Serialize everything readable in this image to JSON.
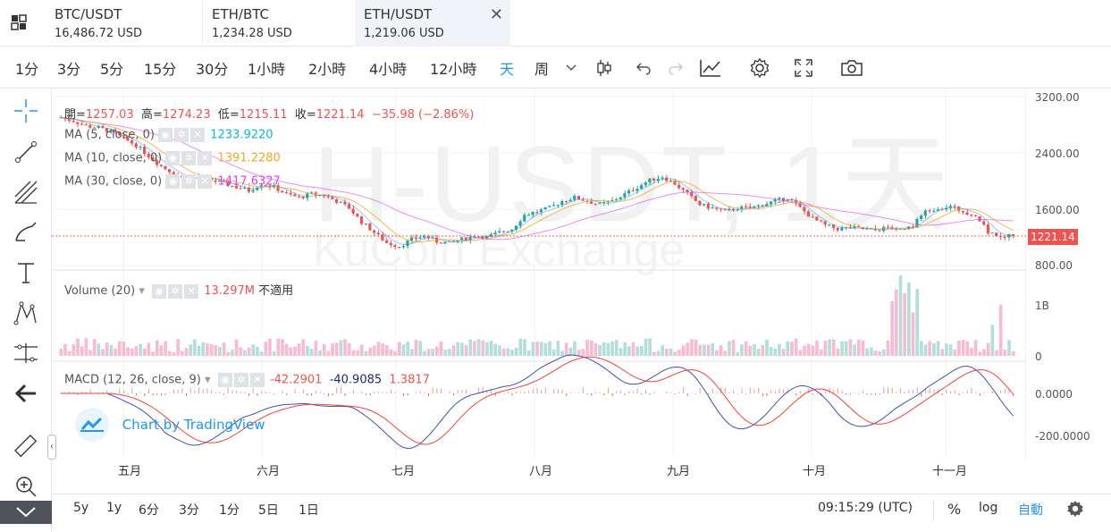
{
  "tabs": [
    {
      "pair": "BTC/USDT",
      "price": "16,486.72 USD"
    },
    {
      "pair": "ETH/BTC",
      "price": "1,234.28 USD"
    },
    {
      "pair": "ETH/USDT",
      "price": "1,219.06 USD"
    }
  ],
  "toolbar": {
    "intervals": [
      "1分",
      "3分",
      "5分",
      "15分",
      "30分",
      "1小時",
      "2小時",
      "4小時",
      "12小時",
      "天",
      "周"
    ],
    "active_interval": "天"
  },
  "watermark": {
    "title": "H-USDT, 1天",
    "exchange": "KuCoin Exchange"
  },
  "legend": {
    "ohlc": {
      "open_label": "開=",
      "open": "1257.03",
      "high_label": "高=",
      "high": "1274.23",
      "low_label": "低=",
      "low": "1215.11",
      "close_label": "收=",
      "close": "1221.14",
      "change": "−35.98 (−2.86%)"
    },
    "ma5": {
      "label": "MA (5, close, 0)",
      "value": "1233.9220"
    },
    "ma10": {
      "label": "MA (10, close, 0)",
      "value": "1391.2280"
    },
    "ma30": {
      "label": "MA (30, close, 0)",
      "value": "1417.6327"
    },
    "volume": {
      "label": "Volume (20)",
      "value": "13.297M",
      "extra": "不適用"
    },
    "macd": {
      "label": "MACD (12, 26, close, 9)",
      "v1": "-42.2901",
      "v2": "-40.9085",
      "v3": "1.3817"
    }
  },
  "price_axis": {
    "ticks": [
      "3200.00",
      "2400.00",
      "1600.00",
      "800.00"
    ],
    "last_price": "1221.14"
  },
  "volume_axis": {
    "ticks": [
      "1B",
      "0"
    ]
  },
  "macd_axis": {
    "ticks": [
      "0.0000",
      "-200.0000"
    ]
  },
  "time_axis": {
    "labels": [
      "五月",
      "六月",
      "七月",
      "八月",
      "九月",
      "十月",
      "十一月"
    ]
  },
  "branding": {
    "text": "Chart by TradingView"
  },
  "bottom": {
    "ranges": [
      "5y",
      "1y",
      "6分",
      "3分",
      "1分",
      "5日",
      "1日"
    ],
    "clock": "09:15:29 (UTC)",
    "percent": "%",
    "log": "log",
    "auto": "自動"
  },
  "colors": {
    "up": "#26a69a",
    "down": "#ef5350",
    "ma5": "#2196f3",
    "ma10": "#f5a623",
    "ma30": "#e040fb",
    "accent": "#2196f3"
  },
  "chart_data": {
    "type": "candlestick",
    "series_close": [
      2900,
      2850,
      2780,
      2750,
      2700,
      2600,
      2500,
      2350,
      2200,
      2100,
      2000,
      2050,
      2000,
      1950,
      1900,
      1850,
      1950,
      1900,
      1800,
      1750,
      1800,
      1780,
      1700,
      1600,
      1400,
      1250,
      1100,
      1050,
      1150,
      1200,
      1120,
      1100,
      1150,
      1200,
      1180,
      1250,
      1300,
      1500,
      1550,
      1600,
      1700,
      1750,
      1700,
      1650,
      1700,
      1800,
      1900,
      2000,
      2050,
      1950,
      1800,
      1650,
      1600,
      1550,
      1600,
      1600,
      1650,
      1700,
      1750,
      1600,
      1450,
      1350,
      1300,
      1320,
      1300,
      1280,
      1320,
      1300,
      1350,
      1550,
      1600,
      1620,
      1550,
      1500,
      1250,
      1200,
      1221
    ],
    "price_range": [
      800,
      3200
    ],
    "macd_range": [
      -250,
      100
    ]
  }
}
